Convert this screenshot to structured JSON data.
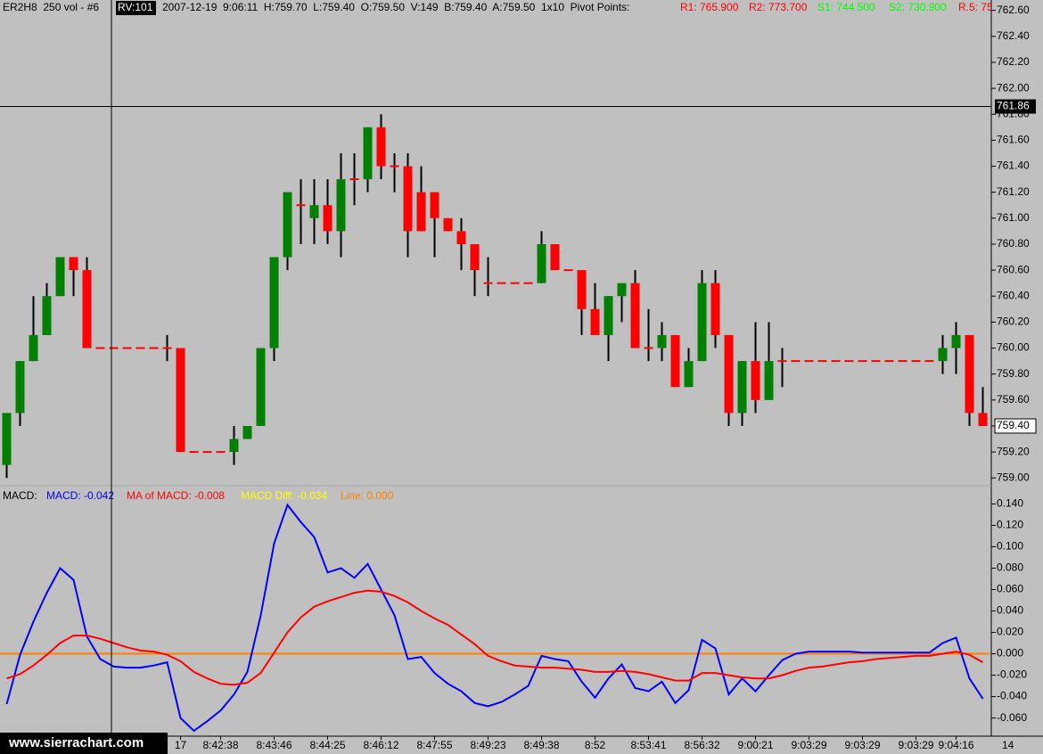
{
  "header": {
    "symbol": "ER2H8  250 vol - #6",
    "replay": "RV:101",
    "quote": "2007-12-19  9:06:11  H:759.70  L:759.40  O:759.50  V:149  B:759.40  A:759.50  1x10  Pivot Points:",
    "pivots": [
      {
        "text": "R1: 765.900",
        "color": "#ff0000"
      },
      {
        "text": "R2: 773.700",
        "color": "#ff0000"
      },
      {
        "text": "S1: 744.500",
        "color": "#00ff00"
      },
      {
        "text": "S2: 730.900",
        "color": "#00ff00"
      },
      {
        "text": "R.5: 75",
        "color": "#ff0000"
      }
    ]
  },
  "chart_data": [
    {
      "type": "candlestick",
      "up_color": "#008000",
      "down_color": "#ff0000",
      "wick_color": "#000000",
      "ylim": [
        758.94,
        762.68
      ],
      "yticks": [
        {
          "value": 759.0,
          "label": "759.00"
        },
        {
          "value": 759.2,
          "label": "759.20"
        },
        {
          "value": 759.4,
          "label": "759.40"
        },
        {
          "value": 759.6,
          "label": "759.60"
        },
        {
          "value": 759.8,
          "label": "759.80"
        },
        {
          "value": 760.0,
          "label": "760.00"
        },
        {
          "value": 760.2,
          "label": "760.20"
        },
        {
          "value": 760.4,
          "label": "760.40"
        },
        {
          "value": 760.6,
          "label": "760.60"
        },
        {
          "value": 760.8,
          "label": "760.80"
        },
        {
          "value": 761.0,
          "label": "761.00"
        },
        {
          "value": 761.2,
          "label": "761.20"
        },
        {
          "value": 761.4,
          "label": "761.40"
        },
        {
          "value": 761.6,
          "label": "761.60"
        },
        {
          "value": 761.8,
          "label": "761.80"
        },
        {
          "value": 762.0,
          "label": "762.00"
        },
        {
          "value": 762.2,
          "label": "762.20"
        },
        {
          "value": 762.4,
          "label": "762.40"
        },
        {
          "value": 762.6,
          "label": "762.60"
        }
      ],
      "crosshair": 761.86,
      "last_price": {
        "value": 759.4,
        "label": "759.40"
      },
      "ohlc": [
        [
          759.1,
          759.5,
          759.0,
          759.5
        ],
        [
          759.5,
          759.9,
          759.4,
          759.9
        ],
        [
          759.9,
          760.4,
          759.9,
          760.1
        ],
        [
          760.1,
          760.5,
          760.1,
          760.4
        ],
        [
          760.4,
          760.7,
          760.4,
          760.7
        ],
        [
          760.7,
          760.7,
          760.4,
          760.6
        ],
        [
          760.6,
          760.7,
          760.0,
          760.0
        ],
        [
          760.0,
          760.0,
          760.0,
          760.0
        ],
        [
          760.0,
          760.0,
          760.0,
          760.0
        ],
        [
          760.0,
          760.0,
          760.0,
          760.0
        ],
        [
          760.0,
          760.0,
          760.0,
          760.0
        ],
        [
          760.0,
          760.0,
          760.0,
          760.0
        ],
        [
          760.0,
          760.1,
          759.9,
          760.0
        ],
        [
          760.0,
          760.0,
          759.2,
          759.2
        ],
        [
          759.2,
          759.2,
          759.2,
          759.2
        ],
        [
          759.2,
          759.2,
          759.2,
          759.2
        ],
        [
          759.2,
          759.2,
          759.2,
          759.2
        ],
        [
          759.2,
          759.4,
          759.1,
          759.3
        ],
        [
          759.3,
          759.4,
          759.3,
          759.4
        ],
        [
          759.4,
          760.0,
          759.4,
          760.0
        ],
        [
          760.0,
          760.7,
          759.9,
          760.7
        ],
        [
          760.7,
          761.2,
          760.6,
          761.2
        ],
        [
          761.1,
          761.3,
          760.8,
          761.1
        ],
        [
          761.0,
          761.3,
          760.8,
          761.1
        ],
        [
          761.1,
          761.3,
          760.8,
          760.9
        ],
        [
          760.9,
          761.5,
          760.7,
          761.3
        ],
        [
          761.3,
          761.5,
          761.1,
          761.3
        ],
        [
          761.3,
          761.7,
          761.2,
          761.7
        ],
        [
          761.7,
          761.8,
          761.3,
          761.4
        ],
        [
          761.4,
          761.5,
          761.2,
          761.4
        ],
        [
          761.4,
          761.5,
          760.7,
          760.9
        ],
        [
          761.2,
          761.4,
          760.9,
          760.9
        ],
        [
          761.2,
          761.2,
          760.7,
          761.0
        ],
        [
          761.0,
          761.0,
          760.9,
          760.9
        ],
        [
          760.9,
          761.0,
          760.6,
          760.8
        ],
        [
          760.8,
          760.8,
          760.4,
          760.6
        ],
        [
          760.5,
          760.7,
          760.4,
          760.5
        ],
        [
          760.5,
          760.5,
          760.5,
          760.5
        ],
        [
          760.5,
          760.5,
          760.5,
          760.5
        ],
        [
          760.5,
          760.5,
          760.5,
          760.5
        ],
        [
          760.5,
          760.9,
          760.5,
          760.8
        ],
        [
          760.8,
          760.8,
          760.6,
          760.6
        ],
        [
          760.6,
          760.6,
          760.6,
          760.6
        ],
        [
          760.6,
          760.6,
          760.1,
          760.3
        ],
        [
          760.3,
          760.5,
          760.1,
          760.1
        ],
        [
          760.1,
          760.4,
          759.9,
          760.4
        ],
        [
          760.4,
          760.5,
          760.2,
          760.5
        ],
        [
          760.5,
          760.6,
          760.0,
          760.0
        ],
        [
          760.0,
          760.3,
          759.9,
          760.0
        ],
        [
          760.0,
          760.2,
          759.9,
          760.1
        ],
        [
          760.1,
          760.1,
          759.7,
          759.7
        ],
        [
          759.7,
          760.0,
          759.7,
          759.9
        ],
        [
          759.9,
          760.6,
          759.9,
          760.5
        ],
        [
          760.5,
          760.6,
          760.0,
          760.1
        ],
        [
          760.1,
          760.1,
          759.4,
          759.5
        ],
        [
          759.5,
          759.9,
          759.4,
          759.9
        ],
        [
          759.9,
          760.2,
          759.5,
          759.6
        ],
        [
          759.6,
          760.2,
          759.6,
          759.9
        ],
        [
          759.9,
          760.0,
          759.7,
          759.9
        ],
        [
          759.9,
          759.9,
          759.9,
          759.9
        ],
        [
          759.9,
          759.9,
          759.9,
          759.9
        ],
        [
          759.9,
          759.9,
          759.9,
          759.9
        ],
        [
          759.9,
          759.9,
          759.9,
          759.9
        ],
        [
          759.9,
          759.9,
          759.9,
          759.9
        ],
        [
          759.9,
          759.9,
          759.9,
          759.9
        ],
        [
          759.9,
          759.9,
          759.9,
          759.9
        ],
        [
          759.9,
          759.9,
          759.9,
          759.9
        ],
        [
          759.9,
          759.9,
          759.9,
          759.9
        ],
        [
          759.9,
          759.9,
          759.9,
          759.9
        ],
        [
          759.9,
          759.9,
          759.9,
          759.9
        ],
        [
          759.9,
          760.1,
          759.8,
          760.0
        ],
        [
          760.0,
          760.2,
          759.8,
          760.1
        ],
        [
          760.1,
          760.1,
          759.4,
          759.5
        ],
        [
          759.5,
          759.7,
          759.4,
          759.4
        ]
      ]
    },
    {
      "type": "line",
      "title": "MACD:",
      "ylim": [
        -0.077,
        0.157
      ],
      "yticks": [
        {
          "value": 0.14,
          "label": "0.140"
        },
        {
          "value": 0.12,
          "label": "0.120"
        },
        {
          "value": 0.1,
          "label": "0.100"
        },
        {
          "value": 0.08,
          "label": "0.080"
        },
        {
          "value": 0.06,
          "label": "0.060"
        },
        {
          "value": 0.04,
          "label": "0.040"
        },
        {
          "value": 0.02,
          "label": "0.020"
        },
        {
          "value": 0,
          "label": "0.000"
        },
        {
          "value": -0.02,
          "label": "-0.020"
        },
        {
          "value": -0.04,
          "label": "-0.040"
        },
        {
          "value": -0.06,
          "label": "-0.060"
        }
      ],
      "categories": [
        null,
        null,
        null,
        null,
        null,
        null,
        null,
        null,
        null,
        null,
        null,
        null,
        null,
        "17",
        null,
        null,
        "8:42:38",
        null,
        null,
        null,
        "8:43:46",
        null,
        null,
        null,
        "8:44:25",
        null,
        null,
        null,
        "8:46:12",
        null,
        null,
        null,
        "8:47:55",
        null,
        null,
        null,
        "8:49:23",
        null,
        null,
        null,
        "8:49:38",
        null,
        null,
        null,
        "8:52",
        null,
        null,
        null,
        "8:53:41",
        null,
        null,
        null,
        "8:56:32",
        null,
        null,
        null,
        "9:00:21",
        null,
        null,
        null,
        "9:03:29",
        null,
        null,
        null,
        "9:03:29",
        null,
        null,
        null,
        "9:03:29",
        null,
        null,
        "9:04:16",
        null,
        null
      ],
      "x_axis_end_label": "14",
      "series": [
        {
          "name": "MACD: -0.042",
          "color": "#0000ff",
          "values": [
            -0.047,
            -0.001,
            0.03,
            0.057,
            0.08,
            0.069,
            0.016,
            -0.005,
            -0.012,
            -0.013,
            -0.013,
            -0.011,
            -0.008,
            -0.06,
            -0.072,
            -0.063,
            -0.053,
            -0.038,
            -0.017,
            0.036,
            0.103,
            0.139,
            0.123,
            0.109,
            0.076,
            0.08,
            0.071,
            0.084,
            0.06,
            0.036,
            -0.005,
            -0.003,
            -0.018,
            -0.028,
            -0.035,
            -0.046,
            -0.049,
            -0.045,
            -0.038,
            -0.03,
            -0.002,
            -0.005,
            -0.007,
            -0.026,
            -0.041,
            -0.023,
            -0.01,
            -0.032,
            -0.035,
            -0.026,
            -0.046,
            -0.034,
            0.013,
            0.005,
            -0.038,
            -0.023,
            -0.035,
            -0.02,
            -0.006,
            0.0,
            0.002,
            0.002,
            0.002,
            0.002,
            0.001,
            0.001,
            0.001,
            0.001,
            0.001,
            0.001,
            0.01,
            0.015,
            -0.023,
            -0.042
          ]
        },
        {
          "name": "MA of MACD: -0.008",
          "color": "#ff0000",
          "values": [
            -0.023,
            -0.019,
            -0.011,
            -0.001,
            0.01,
            0.017,
            0.017,
            0.014,
            0.01,
            0.006,
            0.003,
            0.002,
            -0.001,
            -0.007,
            -0.017,
            -0.023,
            -0.028,
            -0.029,
            -0.027,
            -0.018,
            0.001,
            0.02,
            0.034,
            0.044,
            0.049,
            0.053,
            0.057,
            0.059,
            0.058,
            0.054,
            0.048,
            0.04,
            0.033,
            0.027,
            0.018,
            0.009,
            -0.002,
            -0.007,
            -0.011,
            -0.012,
            -0.013,
            -0.013,
            -0.014,
            -0.015,
            -0.017,
            -0.017,
            -0.016,
            -0.017,
            -0.019,
            -0.022,
            -0.025,
            -0.025,
            -0.018,
            -0.018,
            -0.02,
            -0.022,
            -0.023,
            -0.023,
            -0.02,
            -0.016,
            -0.013,
            -0.012,
            -0.01,
            -0.008,
            -0.007,
            -0.005,
            -0.004,
            -0.003,
            -0.002,
            -0.002,
            0.0,
            0.002,
            -0.001,
            -0.008
          ]
        }
      ],
      "readouts": [
        {
          "text": "MACD Diff: -0.034",
          "color": "#ffff00"
        }
      ],
      "reference_line": {
        "name": "Line: 0.000",
        "value": 0,
        "color": "#ff8000"
      }
    }
  ],
  "watermark": "www.sierrachart.com"
}
